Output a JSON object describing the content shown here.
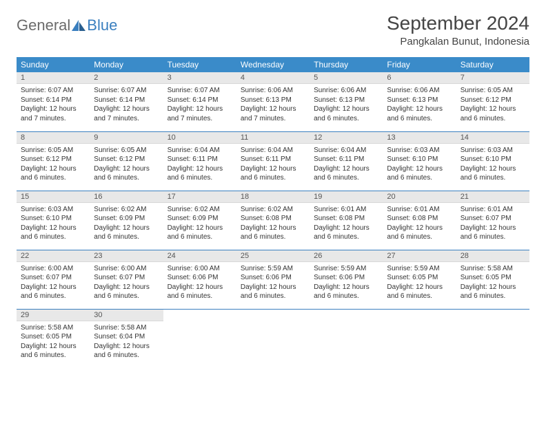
{
  "logo": {
    "word1": "General",
    "word2": "Blue"
  },
  "title": "September 2024",
  "location": "Pangkalan Bunut, Indonesia",
  "colors": {
    "header_bg": "#3a8bc9",
    "header_text": "#ffffff",
    "row_divider": "#3a7fbf",
    "daynum_bg": "#e8e8e8",
    "logo_gray": "#6b6b6b",
    "logo_blue": "#3a7fbf",
    "page_bg": "#ffffff"
  },
  "weekdays": [
    "Sunday",
    "Monday",
    "Tuesday",
    "Wednesday",
    "Thursday",
    "Friday",
    "Saturday"
  ],
  "days": [
    {
      "n": "1",
      "sunrise": "6:07 AM",
      "sunset": "6:14 PM",
      "daylight": "12 hours and 7 minutes."
    },
    {
      "n": "2",
      "sunrise": "6:07 AM",
      "sunset": "6:14 PM",
      "daylight": "12 hours and 7 minutes."
    },
    {
      "n": "3",
      "sunrise": "6:07 AM",
      "sunset": "6:14 PM",
      "daylight": "12 hours and 7 minutes."
    },
    {
      "n": "4",
      "sunrise": "6:06 AM",
      "sunset": "6:13 PM",
      "daylight": "12 hours and 7 minutes."
    },
    {
      "n": "5",
      "sunrise": "6:06 AM",
      "sunset": "6:13 PM",
      "daylight": "12 hours and 6 minutes."
    },
    {
      "n": "6",
      "sunrise": "6:06 AM",
      "sunset": "6:13 PM",
      "daylight": "12 hours and 6 minutes."
    },
    {
      "n": "7",
      "sunrise": "6:05 AM",
      "sunset": "6:12 PM",
      "daylight": "12 hours and 6 minutes."
    },
    {
      "n": "8",
      "sunrise": "6:05 AM",
      "sunset": "6:12 PM",
      "daylight": "12 hours and 6 minutes."
    },
    {
      "n": "9",
      "sunrise": "6:05 AM",
      "sunset": "6:12 PM",
      "daylight": "12 hours and 6 minutes."
    },
    {
      "n": "10",
      "sunrise": "6:04 AM",
      "sunset": "6:11 PM",
      "daylight": "12 hours and 6 minutes."
    },
    {
      "n": "11",
      "sunrise": "6:04 AM",
      "sunset": "6:11 PM",
      "daylight": "12 hours and 6 minutes."
    },
    {
      "n": "12",
      "sunrise": "6:04 AM",
      "sunset": "6:11 PM",
      "daylight": "12 hours and 6 minutes."
    },
    {
      "n": "13",
      "sunrise": "6:03 AM",
      "sunset": "6:10 PM",
      "daylight": "12 hours and 6 minutes."
    },
    {
      "n": "14",
      "sunrise": "6:03 AM",
      "sunset": "6:10 PM",
      "daylight": "12 hours and 6 minutes."
    },
    {
      "n": "15",
      "sunrise": "6:03 AM",
      "sunset": "6:10 PM",
      "daylight": "12 hours and 6 minutes."
    },
    {
      "n": "16",
      "sunrise": "6:02 AM",
      "sunset": "6:09 PM",
      "daylight": "12 hours and 6 minutes."
    },
    {
      "n": "17",
      "sunrise": "6:02 AM",
      "sunset": "6:09 PM",
      "daylight": "12 hours and 6 minutes."
    },
    {
      "n": "18",
      "sunrise": "6:02 AM",
      "sunset": "6:08 PM",
      "daylight": "12 hours and 6 minutes."
    },
    {
      "n": "19",
      "sunrise": "6:01 AM",
      "sunset": "6:08 PM",
      "daylight": "12 hours and 6 minutes."
    },
    {
      "n": "20",
      "sunrise": "6:01 AM",
      "sunset": "6:08 PM",
      "daylight": "12 hours and 6 minutes."
    },
    {
      "n": "21",
      "sunrise": "6:01 AM",
      "sunset": "6:07 PM",
      "daylight": "12 hours and 6 minutes."
    },
    {
      "n": "22",
      "sunrise": "6:00 AM",
      "sunset": "6:07 PM",
      "daylight": "12 hours and 6 minutes."
    },
    {
      "n": "23",
      "sunrise": "6:00 AM",
      "sunset": "6:07 PM",
      "daylight": "12 hours and 6 minutes."
    },
    {
      "n": "24",
      "sunrise": "6:00 AM",
      "sunset": "6:06 PM",
      "daylight": "12 hours and 6 minutes."
    },
    {
      "n": "25",
      "sunrise": "5:59 AM",
      "sunset": "6:06 PM",
      "daylight": "12 hours and 6 minutes."
    },
    {
      "n": "26",
      "sunrise": "5:59 AM",
      "sunset": "6:06 PM",
      "daylight": "12 hours and 6 minutes."
    },
    {
      "n": "27",
      "sunrise": "5:59 AM",
      "sunset": "6:05 PM",
      "daylight": "12 hours and 6 minutes."
    },
    {
      "n": "28",
      "sunrise": "5:58 AM",
      "sunset": "6:05 PM",
      "daylight": "12 hours and 6 minutes."
    },
    {
      "n": "29",
      "sunrise": "5:58 AM",
      "sunset": "6:05 PM",
      "daylight": "12 hours and 6 minutes."
    },
    {
      "n": "30",
      "sunrise": "5:58 AM",
      "sunset": "6:04 PM",
      "daylight": "12 hours and 6 minutes."
    }
  ],
  "labels": {
    "sunrise": "Sunrise:",
    "sunset": "Sunset:",
    "daylight": "Daylight:"
  }
}
